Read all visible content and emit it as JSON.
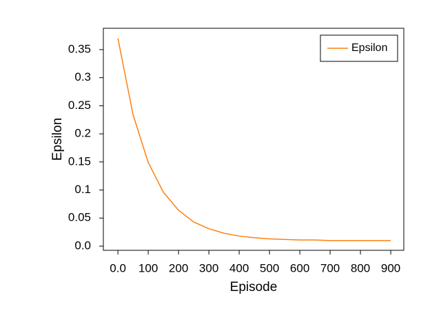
{
  "chart_data": {
    "type": "line",
    "x_label": "Episode",
    "y_label": "Epsilon",
    "x": [
      0,
      50,
      100,
      150,
      200,
      250,
      300,
      350,
      400,
      450,
      500,
      550,
      600,
      650,
      700,
      750,
      800,
      850,
      900
    ],
    "series": [
      {
        "name": "Epsilon",
        "color": "#ff7f0e",
        "values": [
          0.37,
          0.234,
          0.149,
          0.096,
          0.064,
          0.043,
          0.031,
          0.023,
          0.018,
          0.015,
          0.013,
          0.012,
          0.011,
          0.011,
          0.01,
          0.01,
          0.01,
          0.01,
          0.01
        ]
      }
    ],
    "xlim": [
      -48,
      943
    ],
    "ylim": [
      -0.0074,
      0.388
    ],
    "xticks": [
      {
        "value": 0,
        "label": "0.0"
      },
      100,
      200,
      300,
      400,
      500,
      600,
      700,
      800,
      900
    ],
    "yticks": [
      {
        "value": 0,
        "label": "0.0"
      },
      0.05,
      0.1,
      0.15,
      0.2,
      0.25,
      0.3,
      0.35
    ],
    "legend": "upper right"
  }
}
